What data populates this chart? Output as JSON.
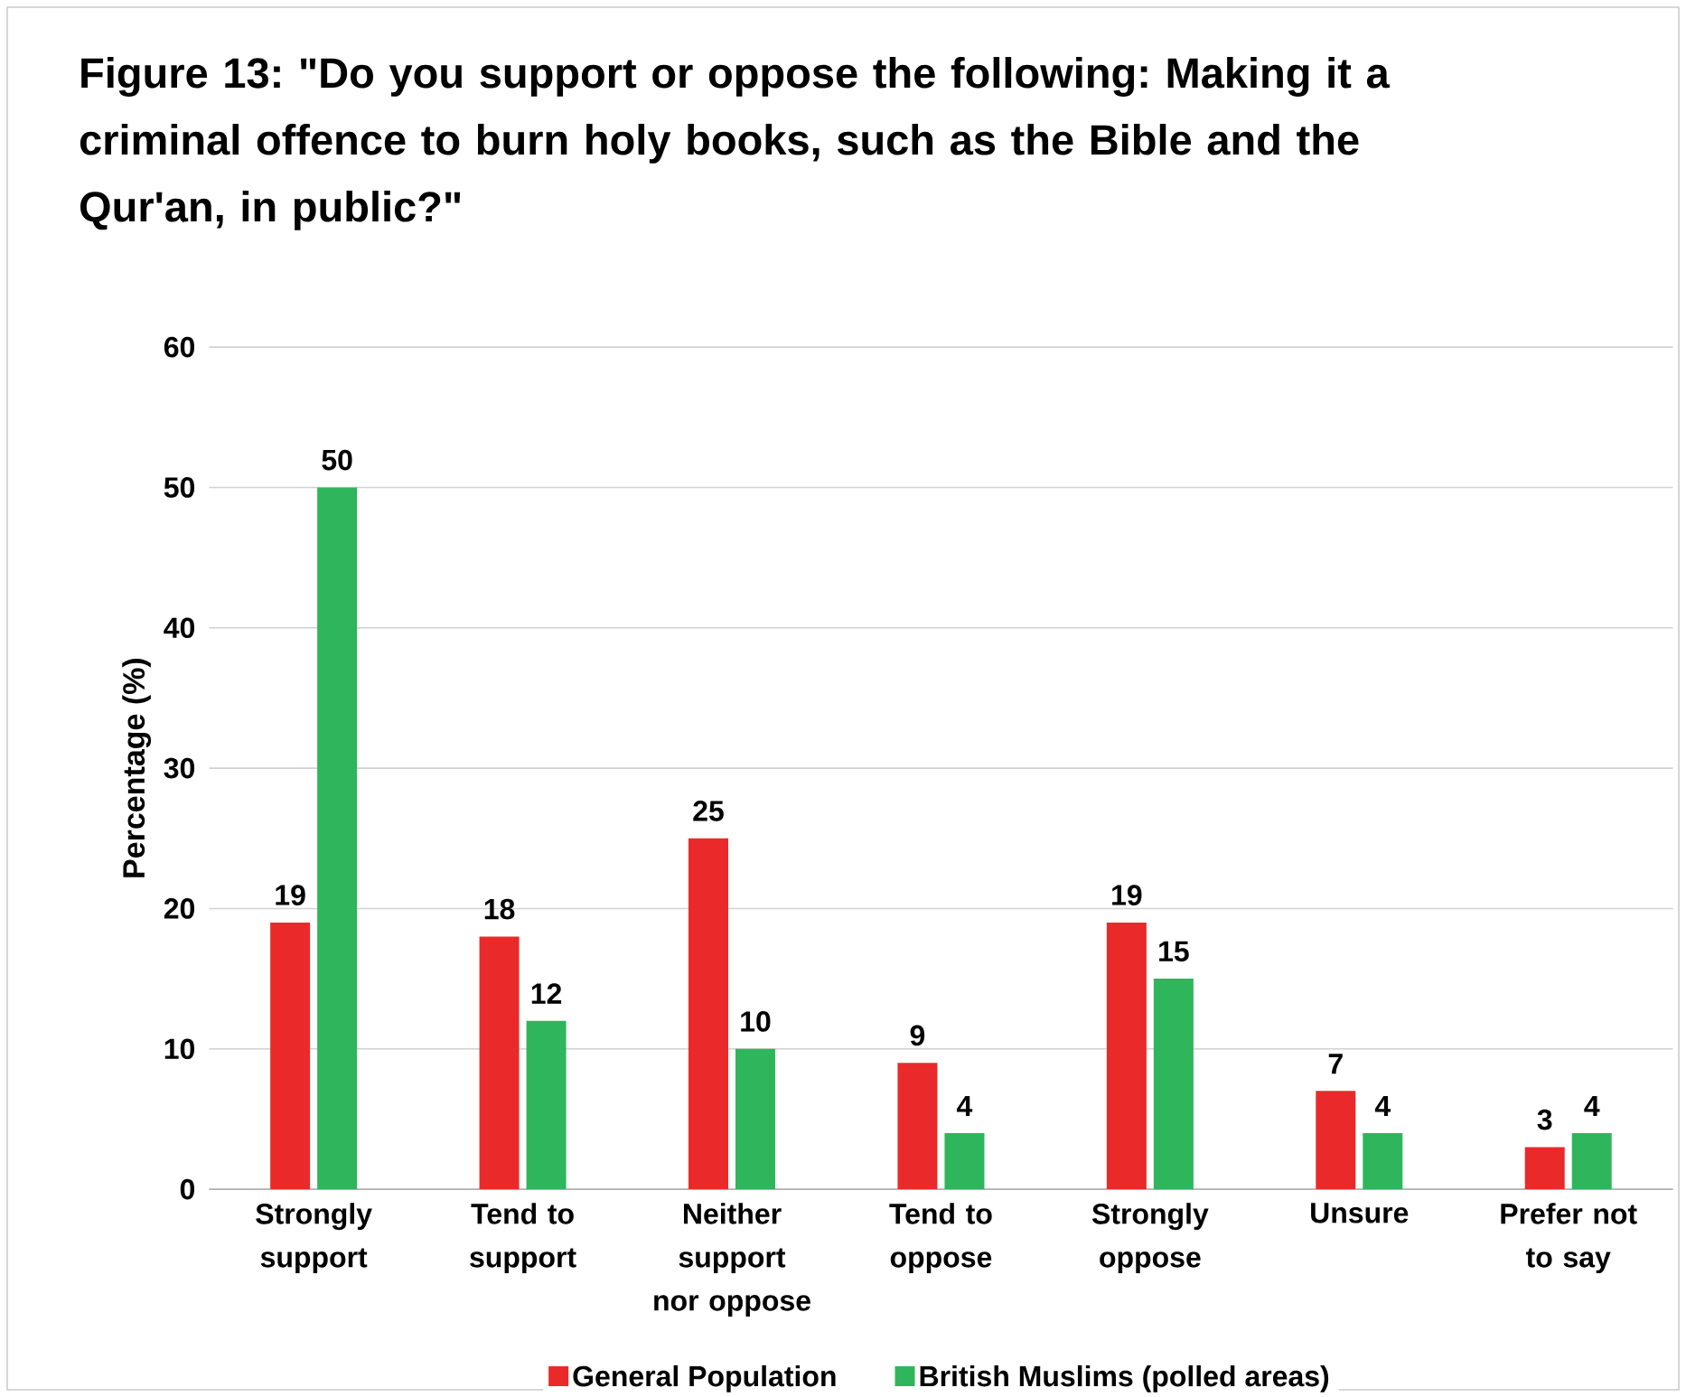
{
  "chart_data": {
    "type": "bar",
    "title": "Figure 13: \"Do you support or oppose the following: Making it a criminal offence to burn holy books, such as the Bible and the Qur'an, in public?\"",
    "ylabel": "Percentage (%)",
    "categories": [
      "Strongly support",
      "Tend to support",
      "Neither support nor oppose",
      "Tend to oppose",
      "Strongly oppose",
      "Unsure",
      "Prefer not to say"
    ],
    "series": [
      {
        "name": "General Population",
        "color": "#ea2a2a",
        "values": [
          19,
          18,
          25,
          9,
          19,
          7,
          3
        ]
      },
      {
        "name": "British Muslims (polled areas)",
        "color": "#2fb55c",
        "values": [
          50,
          12,
          10,
          4,
          15,
          4,
          4
        ]
      }
    ],
    "ylim": [
      0,
      60
    ],
    "yticks": [
      0,
      10,
      20,
      30,
      40,
      50,
      60
    ],
    "grid": "y",
    "legend": "bottom",
    "data_labels": true
  }
}
